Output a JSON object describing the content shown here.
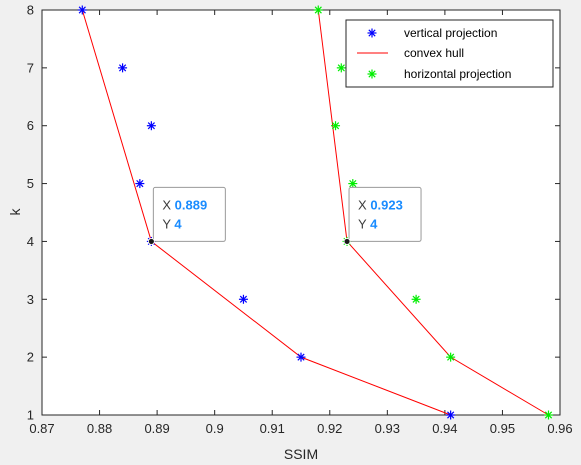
{
  "chart_data": {
    "type": "scatter",
    "title": "",
    "xlabel": "SSIM",
    "ylabel": "k",
    "xlim": [
      0.87,
      0.96
    ],
    "ylim": [
      1,
      8
    ],
    "xticks": [
      "0.87",
      "0.88",
      "0.89",
      "0.9",
      "0.91",
      "0.92",
      "0.93",
      "0.94",
      "0.95",
      "0.96"
    ],
    "yticks": [
      "1",
      "2",
      "3",
      "4",
      "5",
      "6",
      "7",
      "8"
    ],
    "grid": false,
    "legend_position": "top-right",
    "series": [
      {
        "name": "vertical projection",
        "marker": "asterisk",
        "color": "#0000ff",
        "points": [
          [
            0.877,
            8
          ],
          [
            0.884,
            7
          ],
          [
            0.889,
            6
          ],
          [
            0.887,
            5
          ],
          [
            0.889,
            4
          ],
          [
            0.905,
            3
          ],
          [
            0.915,
            2
          ],
          [
            0.941,
            1
          ]
        ]
      },
      {
        "name": "horizontal projection",
        "marker": "asterisk",
        "color": "#00ee00",
        "points": [
          [
            0.918,
            8
          ],
          [
            0.922,
            7
          ],
          [
            0.921,
            6
          ],
          [
            0.924,
            5
          ],
          [
            0.923,
            4
          ],
          [
            0.935,
            3
          ],
          [
            0.941,
            2
          ],
          [
            0.958,
            1
          ]
        ]
      }
    ],
    "hulls": [
      {
        "legend": "convex hull",
        "color": "#ff0000",
        "points": [
          [
            0.877,
            8
          ],
          [
            0.889,
            4
          ],
          [
            0.915,
            2
          ],
          [
            0.941,
            1
          ]
        ]
      },
      {
        "legend": "convex hull",
        "color": "#ff0000",
        "points": [
          [
            0.918,
            8
          ],
          [
            0.923,
            4
          ],
          [
            0.941,
            2
          ],
          [
            0.958,
            1
          ]
        ]
      }
    ],
    "legend": [
      "vertical projection",
      "convex hull",
      "horizontal projection"
    ],
    "datatips": [
      {
        "x_label": "X",
        "y_label": "Y",
        "x_value": "0.889",
        "y_value": "4",
        "point": [
          0.889,
          4
        ]
      },
      {
        "x_label": "X",
        "y_label": "Y",
        "x_value": "0.923",
        "y_value": "4",
        "point": [
          0.923,
          4
        ]
      }
    ]
  }
}
